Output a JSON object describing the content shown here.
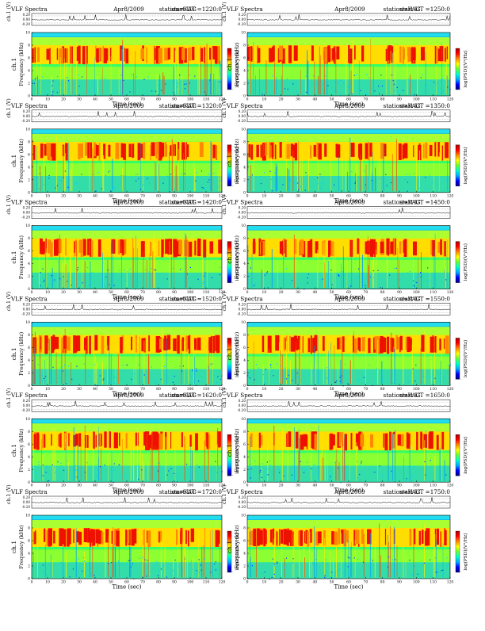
{
  "page": {
    "panels": [
      {
        "title": "VLF Spectra",
        "date": "Apr8/2009",
        "station": "station=KAG",
        "start": "start  UT  =1220:0"
      },
      {
        "title": "VLF Spectra",
        "date": "Apr8/2009",
        "station": "station=KAG",
        "start": "start  UT  =1250:0"
      },
      {
        "title": "VLF Spectra",
        "date": "Apr8/2009",
        "station": "station=KAG",
        "start": "start  UT  =1320:0"
      },
      {
        "title": "VLF Spectra",
        "date": "Apr8/2009",
        "station": "station=KAG",
        "start": "start  UT  =1350:0"
      },
      {
        "title": "VLF Spectra",
        "date": "Apr8/2009",
        "station": "station=KAG",
        "start": "start  UT  =1420:0"
      },
      {
        "title": "VLF Spectra",
        "date": "Apr8/2009",
        "station": "station=KAG",
        "start": "start  UT  =1450:0"
      },
      {
        "title": "VLF Spectra",
        "date": "Apr8/2009",
        "station": "station=KAG",
        "start": "start  UT  =1520:0"
      },
      {
        "title": "VLF Spectra",
        "date": "Apr8/2009",
        "station": "station=KAG",
        "start": "start  UT  =1550:0"
      },
      {
        "title": "VLF Spectra",
        "date": "Apr8/2009",
        "station": "station=KAG",
        "start": "start  UT  =1620:0"
      },
      {
        "title": "VLF Spectra",
        "date": "Apr8/2009",
        "station": "station=KAG",
        "start": "start  UT  =1650:0"
      },
      {
        "title": "VLF Spectra",
        "date": "Apr8/2009",
        "station": "station=KAG",
        "start": "start  UT  =1720:0"
      },
      {
        "title": "VLF Spectra",
        "date": "Apr8/2009",
        "station": "station=KAG",
        "start": "start  UT  =1750:0"
      }
    ]
  },
  "chart_data": {
    "type": "heatmap",
    "panel_count": 12,
    "xlabel": "Time  (sec)",
    "ylabel": "Frequency  (kHz)",
    "ylabel_channel": "ch.1",
    "waveform_ylabel": "ch.1 (V)",
    "waveform_ticks": [
      "0.20",
      "0.00",
      "-0.20"
    ],
    "waveform_ylim": [
      -0.2,
      0.2
    ],
    "colorbar_label": "log(PSD)(V²/Hz)",
    "colormap": [
      "#00007f",
      "#0000ff",
      "#00aaff",
      "#00ffcc",
      "#66ff33",
      "#ffff00",
      "#ff8800",
      "#ff0000",
      "#aa0000"
    ],
    "ylim": [
      0,
      10
    ],
    "yticks": [
      "0",
      "2",
      "4",
      "6",
      "8",
      "10"
    ],
    "xlim_left": [
      0,
      120
    ],
    "xlim_right": [
      0,
      120
    ],
    "xticks_left": [
      "0",
      "10",
      "20",
      "30",
      "40",
      "50",
      "60",
      "70",
      "80",
      "90",
      "100",
      "110",
      "120"
    ],
    "xticks_right": [
      "0",
      "10",
      "20",
      "30",
      "40",
      "50",
      "60",
      "70",
      "80",
      "90",
      "100",
      "110",
      "120"
    ],
    "emission_band_khz": [
      5,
      8
    ]
  }
}
